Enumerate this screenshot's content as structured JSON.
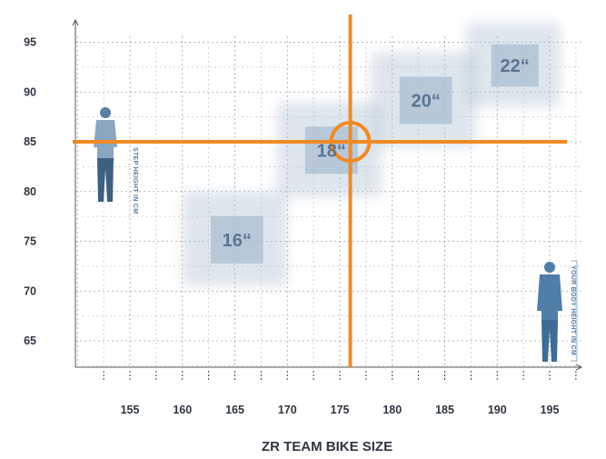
{
  "chart_data": {
    "type": "size-chart",
    "title": "",
    "xlabel": "ZR TEAM BIKE SIZE",
    "ylabel": "STEP HEIGHT IN CM",
    "x_axis_note": "YOUR BODY HEIGHT IN CM",
    "x_ticks": [
      155,
      160,
      165,
      170,
      175,
      180,
      185,
      190,
      195
    ],
    "y_ticks": [
      65,
      70,
      75,
      80,
      85,
      90,
      95
    ],
    "xlim": [
      150,
      198
    ],
    "ylim": [
      62,
      97
    ],
    "grid": true,
    "sizes": [
      {
        "label": "16“",
        "x": [
          160,
          170
        ],
        "y": [
          70.5,
          80
        ]
      },
      {
        "label": "18“",
        "x": [
          169,
          179
        ],
        "y": [
          79.5,
          89
        ]
      },
      {
        "label": "20“",
        "x": [
          178,
          188
        ],
        "y": [
          84.5,
          94
        ]
      },
      {
        "label": "22“",
        "x": [
          187,
          196
        ],
        "y": [
          88.5,
          97
        ]
      }
    ],
    "highlight": {
      "x": 176,
      "y": 85
    },
    "colors": {
      "highlight": "#f08a24",
      "size_box": "#b7c8d8",
      "figure": "#5b7fa0",
      "grid": "#8a8a8a"
    },
    "icons": [
      "person-figure-icon-left",
      "person-figure-icon-right"
    ]
  }
}
